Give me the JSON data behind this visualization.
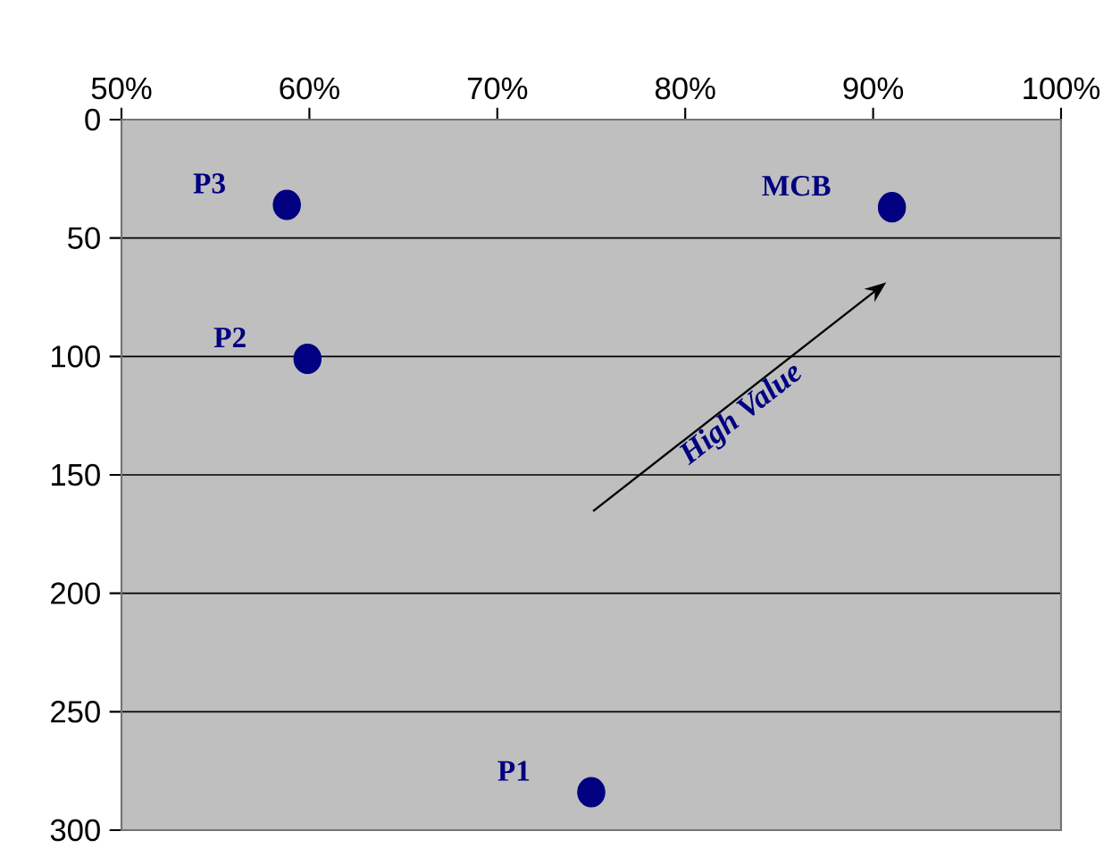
{
  "chart_data": {
    "type": "scatter",
    "series": [
      {
        "name": "P3",
        "color": "#000080",
        "x": [
          58.8
        ],
        "values": [
          36
        ]
      },
      {
        "name": "P2",
        "color": "#000080",
        "x": [
          59.9
        ],
        "values": [
          101
        ]
      },
      {
        "name": "MCB",
        "color": "#000080",
        "x": [
          91
        ],
        "values": [
          37
        ]
      },
      {
        "name": "P1",
        "color": "#000080",
        "x": [
          75
        ],
        "values": [
          284
        ]
      }
    ],
    "xlim": [
      50,
      100
    ],
    "xticks": [
      {
        "value": 50,
        "label": "50%"
      },
      {
        "value": 60,
        "label": "60%"
      },
      {
        "value": 70,
        "label": "70%"
      },
      {
        "value": 80,
        "label": "80%"
      },
      {
        "value": 90,
        "label": "90%"
      },
      {
        "value": 100,
        "label": "100%"
      }
    ],
    "ylim": [
      300,
      0
    ],
    "yticks": [
      0,
      50,
      100,
      150,
      200,
      250,
      300
    ],
    "grid": "y",
    "marker": "circle",
    "annotations": [
      "High Value"
    ]
  }
}
